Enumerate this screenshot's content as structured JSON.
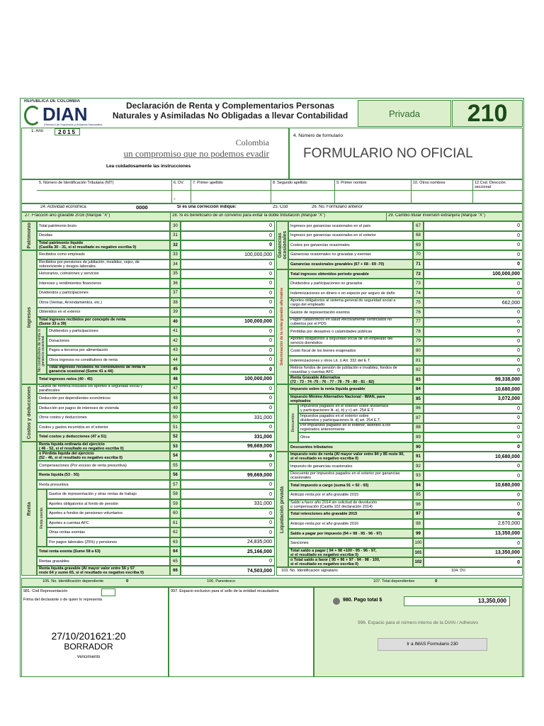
{
  "header": {
    "logo_top": "REPÚBLICA DE COLOMBIA",
    "logo": "DIAN",
    "logo_sub": "Dirección de Impuestos y Aduanas Nacionales",
    "title": "Declaración de Renta y Complementarios Personas\nNaturales y Asimiladas No Obligadas a llevar Contabilidad",
    "type": "Privada",
    "form_number": "210"
  },
  "top": {
    "year_label": "1. Año",
    "year": "2015",
    "slogan_1": "Colombia",
    "slogan_2": "un compromiso que no podemos evadir",
    "instructions": "Lea cuidadosamente las instrucciones",
    "form_no_label": "4. Número de formulario",
    "form_no": "FORMULARIO NO OFICIAL"
  },
  "id_fields": [
    "5. Número de Identificación Tributaria (NIT)",
    "6. DV.",
    "7. Primer apellido",
    "8. Segundo apellido",
    "9. Primer nombre",
    "10. Otros nombres",
    "12.Cod. Dirección seccional"
  ],
  "id_dash": "-",
  "row24": {
    "activity_label": "24. Actividad económica",
    "activity": "0000",
    "correction": "Si es una corrección indique:",
    "code": "25. Cód",
    "previous": "26. No. Formulario anterior"
  },
  "row27": [
    "27. Fracción año gravable 2016 (Marque \"X\")",
    "28. Si es beneficiario de un convenio para evitar la doble tributación (Marque \"X\")",
    "29. Cambio titular inversión extranjera (Marque \"X\")"
  ],
  "left": [
    {
      "label": "Patrimonio",
      "rows": [
        {
          "code": "30",
          "label": "Total patrimonio bruto",
          "value": "0"
        },
        {
          "code": "31",
          "label": "Deudas",
          "value": "0"
        },
        {
          "code": "32",
          "label": "Total patrimonio líquido\n(Casilla 30 - 31, si el resultado es negativo escriba 0)",
          "value": "0",
          "bold": true
        }
      ]
    },
    {
      "label": "Ingresos",
      "rows": [
        {
          "code": "33",
          "label": "Recibidos como empleado",
          "value": "100,000,000"
        },
        {
          "code": "34",
          "label": "Recibidos por pensiones de jubilación, invalidez, vejez, de\nsobreviviente y riesgos laborales.",
          "value": "0"
        },
        {
          "code": "35",
          "label": "Honorarios, comisiones y servicios",
          "value": "0"
        },
        {
          "code": "36",
          "label": "Intereses y rendimientos financieros",
          "value": "0"
        },
        {
          "code": "37",
          "label": "Dividendos y participaciones",
          "value": "0"
        },
        {
          "code": "38",
          "label": "Otros (Ventas, Arrendamientos, etc.)",
          "value": "0"
        },
        {
          "code": "39",
          "label": "Obtenidos en el exterior",
          "value": "0"
        },
        {
          "code": "40",
          "label": "Total ingresos recibidos por concepto de renta\n(Sume 33 a 39)",
          "value": "100,000,000",
          "bold": true
        },
        {
          "label": "No constitutivos de renta ni ganancia ocasional",
          "rows": [
            {
              "code": "41",
              "label": "Dividendos y participaciones",
              "value": "0"
            },
            {
              "code": "42",
              "label": "Donaciones",
              "value": "0"
            },
            {
              "code": "43",
              "label": "Pagos a terceros por alimentación",
              "value": "0"
            },
            {
              "code": "44",
              "label": "Otros ingresos no constitutivos de renta",
              "value": "0"
            },
            {
              "code": "45",
              "label": "Total ingresos recibidos no constitutivos de renta ni\nganancia ocasional (Sume 41 a 44)",
              "value": "0",
              "bold": true
            }
          ]
        },
        {
          "code": "46",
          "label": "Total ingresos netos (40 - 45)",
          "value": "100,000,000",
          "bold": true
        }
      ]
    },
    {
      "label": "Costos y deducciones",
      "rows": [
        {
          "code": "47",
          "label": "Gastos de nómina incluidos los aportes a seguridad social y\nparafiscales",
          "value": "0"
        },
        {
          "code": "48",
          "label": "Deducción por dependientes económicos",
          "value": "0"
        },
        {
          "code": "49",
          "label": "Deducción por pagos de intereses de vivienda",
          "value": "0"
        },
        {
          "code": "50",
          "label": "Otros costos y deducciones",
          "value": "331,000"
        },
        {
          "code": "51",
          "label": "Costos y gastos incurridos en el exterior",
          "value": "0"
        },
        {
          "code": "52",
          "label": "Total costos y deducciones (47 a 51)",
          "value": "331,000",
          "bold": true
        }
      ]
    },
    {
      "label": "Renta",
      "rows": [
        {
          "code": "53",
          "label": "Renta líquida ordinaria del ejercicio\n( 46 - 52, si el resultado es negativo escriba 0)",
          "value": "99,669,000",
          "bold": true
        },
        {
          "code": "54",
          "label": "o Pérdida líquida del ejercicio\n(52 - 46, si el resultado es negativo escriba 0)",
          "value": "0",
          "bold": true
        },
        {
          "code": "55",
          "label": "Compensaciones (Por exceso de renta presuntiva)",
          "value": "0"
        },
        {
          "code": "56",
          "label": "Renta líquida (53 - 55)",
          "value": "99,669,000",
          "bold": true
        },
        {
          "code": "57",
          "label": "Renta presuntiva",
          "value": "0"
        },
        {
          "label": "Renta exenta",
          "rows": [
            {
              "code": "58",
              "label": "Gastos de representación y otras rentas de trabajo",
              "value": "0"
            },
            {
              "code": "59",
              "label": "Aportes obligatorios al fondo de pensión",
              "value": "331,000"
            },
            {
              "code": "60",
              "label": "Aportes a fondos de pensiones voluntarios",
              "value": "0"
            },
            {
              "code": "61",
              "label": "Aportes a cuentas AFC",
              "value": "0"
            },
            {
              "code": "62",
              "label": "Otras rentas exentas",
              "value": "0"
            },
            {
              "code": "63",
              "label": "Por pagos laborales (25%) y pensiones",
              "value": "24,835,000"
            }
          ]
        },
        {
          "code": "64",
          "label": "Total renta exenta (Sume 58 a 63)",
          "value": "25,166,000",
          "bold": true
        },
        {
          "code": "65",
          "label": "Rentas gravables",
          "value": "0"
        },
        {
          "code": "66",
          "label": "Renta líquida gravable (Al mayor valor entre 56 y 57\nreste 64 y sume 65, si el resultado es negativo escriba 0)",
          "value": "74,503,000",
          "bold": true
        }
      ]
    }
  ],
  "right": [
    {
      "label": "Ganancias ocasionales",
      "rows": [
        {
          "code": "67",
          "label": "Ingresos por ganancias ocasionales en el país",
          "value": "0"
        },
        {
          "code": "68",
          "label": "Ingresos por ganancias ocasionales en el exterior",
          "value": "0"
        },
        {
          "code": "69",
          "label": "Costos por ganancias ocasionales",
          "value": "0"
        },
        {
          "code": "70",
          "label": "Ganancias ocasionales no gravadas y exentas",
          "value": "0"
        },
        {
          "code": "71",
          "label": "Ganancias ocasionales gravables (67 + 68 - 69 -70)",
          "value": "0",
          "bold": true
        }
      ]
    },
    {
      "label": "Determinación de la renta gravable alternativa",
      "red": true,
      "rows": [
        {
          "code": "72",
          "label": "Total ingresos obtenidos periodo gravable",
          "value": "100,000,000",
          "bold": true
        },
        {
          "code": "73",
          "label": "Dividendos y participaciones no gravados",
          "value": "0"
        },
        {
          "code": "74",
          "label": "Indemnizaciones en dinero o en especie por seguro de daño",
          "value": "0"
        },
        {
          "code": "75",
          "label": "Aportes obligatorios al sistema general de seguridad social a\ncargo del empleado",
          "value": "662,000"
        },
        {
          "code": "76",
          "label": "Gastos de representación exentos",
          "value": "0"
        },
        {
          "code": "77",
          "label": "Pagos catastróficos en salud efectivamente certificados no\ncubiertos por el POS",
          "value": "0"
        },
        {
          "code": "78",
          "label": "Pérdidas por desastres o calamidades públicas",
          "value": "0"
        },
        {
          "code": "79",
          "label": "Aportes obligatorios a seguridad social de un empleado del\nservicio doméstico",
          "value": "0"
        },
        {
          "code": "80",
          "label": "Costo fiscal de los bienes enajenados",
          "value": "0"
        },
        {
          "code": "81",
          "label": "Indemnizaciones y otros Lit. i) Art. 332 del E.T.",
          "value": "0"
        },
        {
          "code": "82",
          "label": "Retiros fondos de pensión de jubilación e invalidez, fondos de\ncesantías y cuentas AFC",
          "value": "0"
        },
        {
          "code": "83",
          "label": "Renta Gravable Alternativa\n(72 - 73 - 74 -75 - 76 - 77 - 78 - 79 - 80 - 81 - 82)",
          "value": "99,338,000",
          "bold": true
        }
      ]
    },
    {
      "rows": [
        {
          "code": "84",
          "label": "Impuesto sobre la renta líquida gravable",
          "value": "10,680,000",
          "bold": true
        },
        {
          "code": "85",
          "label": "Impuesto Mínimo Alternativo Nacional - IMAN, para\nempleados",
          "value": "3,072,000",
          "bold": true
        },
        {
          "label": "Descuentos",
          "rows": [
            {
              "code": "86",
              "label": "Impuestos pagados en el exterior sobre dividendos\ny participaciones lit. a), b) y c) art. 254 E.T.",
              "value": "0"
            },
            {
              "code": "87",
              "label": "Impuestos pagados en el exterior sobre\ndividendos y participaciones lit. d) art. 254 E.T.",
              "value": "0"
            },
            {
              "code": "88",
              "label": "Por impuestos pagados en el exterior, distintos a los\nregistrados anteriormente",
              "value": "0"
            },
            {
              "code": "89",
              "label": "Otros",
              "value": "0"
            }
          ]
        },
        {
          "code": "90",
          "label": "Descuentos tributarios",
          "value": "0",
          "bold": true
        }
      ]
    },
    {
      "label": "Liquidación privada",
      "rows": [
        {
          "code": "91",
          "label": "Impuesto neto de renta (Al mayor valor entre 84 y 85 reste 90,\nsi el resultado es negativo escriba 0)",
          "value": "10,680,000",
          "bold": true
        },
        {
          "code": "92",
          "label": "Impuesto de ganancias ocasionales",
          "value": "0"
        },
        {
          "code": "93",
          "label": "Descuento por impuestos pagados en el exterior por ganancias\nocasionales",
          "value": "0"
        },
        {
          "code": "94",
          "label": "Total impuesto a cargo (suma 91 + 92 - 93)",
          "value": "10,680,000",
          "bold": true
        },
        {
          "code": "95",
          "label": "Anticipo renta por el año gravable 2015",
          "value": "0"
        },
        {
          "code": "96",
          "label": "Saldo a favor año 2014 sin solicitud de devolución\no compensación (Casilla 102 declaración 2014)",
          "value": "0"
        },
        {
          "code": "97",
          "label": "Total retenciones año gravable 2015",
          "value": "0",
          "bold": true
        },
        {
          "code": "98",
          "label": "Anticipo renta por el año gravable 2016",
          "value": "2,670,000"
        },
        {
          "code": "99",
          "label": "Saldo a pagar por impuesto (94 + 98 - 95 - 96 - 97)",
          "value": "13,350,000",
          "bold": true
        },
        {
          "code": "100",
          "label": "Sanciones",
          "value": "0"
        },
        {
          "code": "101",
          "label": "Total saldo a pagar ( 94 + 98 +100 - 95 - 96 - 97,\nsi el resultado es negativo escriba 0)",
          "value": "13,350,000",
          "bold": true
        },
        {
          "code": "102",
          "label": "o Total saldo a favor ( 95 + 96 + 97 - 94 - 98 - 100,\nsi el resultado es negativo escriba 0)",
          "value": "0",
          "bold": true
        }
      ]
    }
  ],
  "row103": [
    "103. No. Identificación signatario",
    "104. DV."
  ],
  "row105": {
    "dependent_id_label": "105. No. Identificación dependiente",
    "dependent_id": "0",
    "relation": "106. Parentesco",
    "total_label": "107. Total dependientes",
    "total": "0"
  },
  "bottom": {
    "representation": "981. Cód Representación",
    "signature": "Firma del declarante o de quien lo representa",
    "stamp": "997. Espacio exclusivo para el sello de la entidad recaudadora",
    "payment_label": "980. Pago total $",
    "payment": "13,350,000",
    "dian_space": "996. Espacio para el número interno de la DIAN / Adhesivo",
    "date": "27/10/201621:20",
    "draft": "BORRADOR",
    "button": "Ir a IMAS Formulario 230",
    "due": "Vencimiento"
  }
}
